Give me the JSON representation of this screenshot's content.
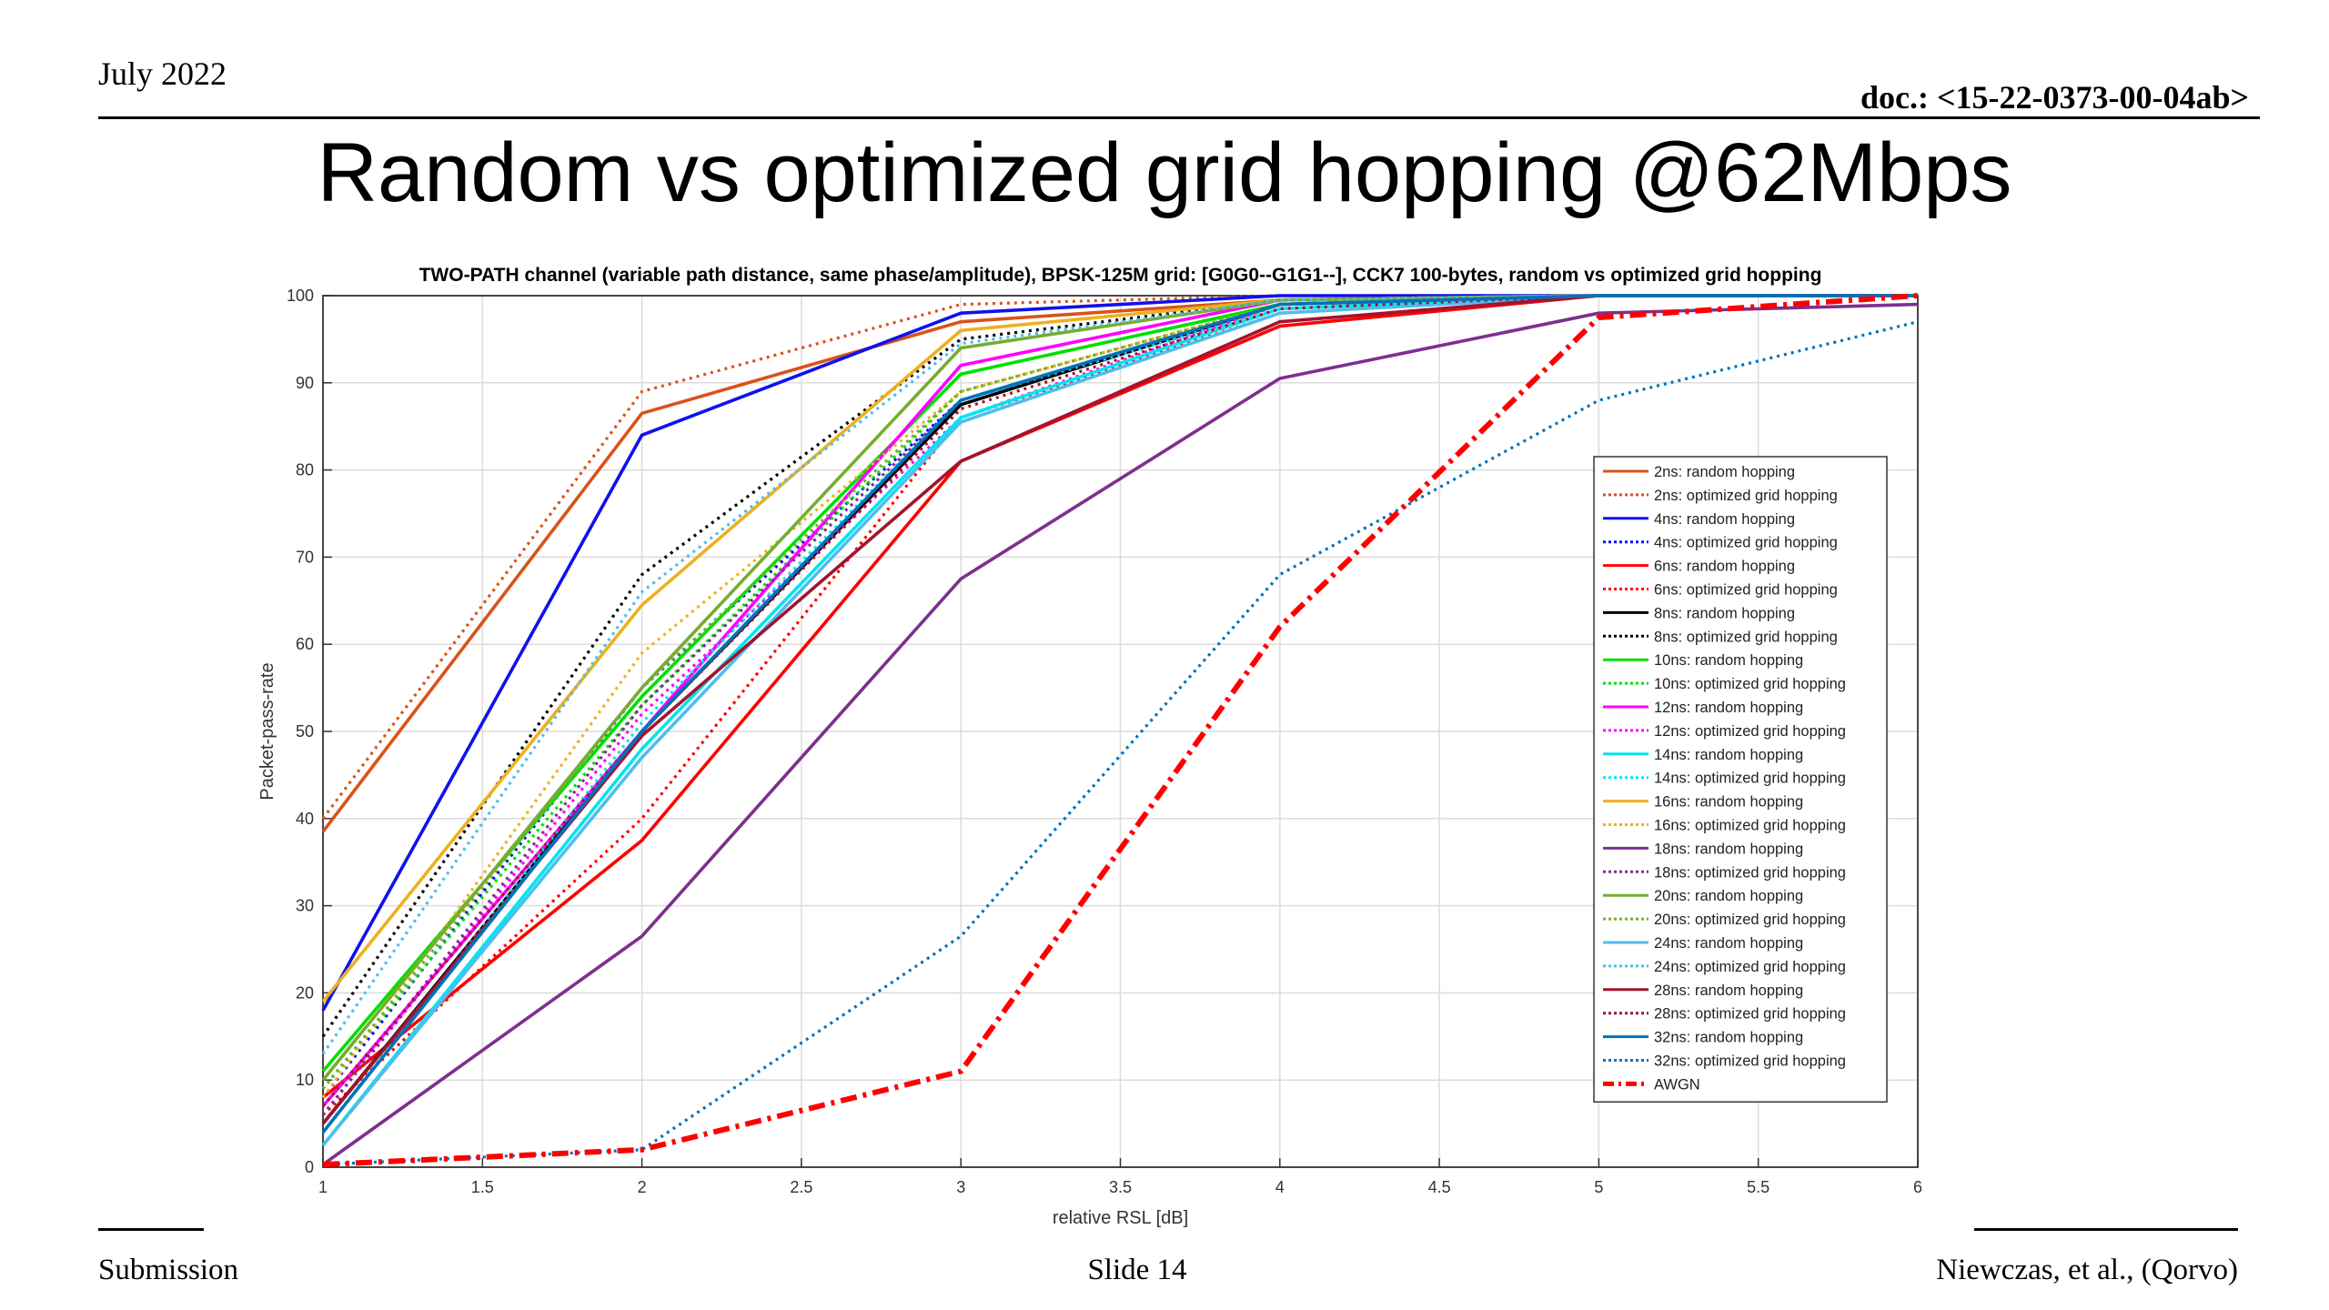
{
  "header": {
    "date": "July 2022",
    "doc": "doc.: <15-22-0373-00-04ab>"
  },
  "slide_title": "Random vs optimized grid hopping @62Mbps",
  "footer": {
    "left": "Submission",
    "center": "Slide 14",
    "right": "Niewczas, et al., (Qorvo)"
  },
  "colors": {
    "c2": "#D95319",
    "c4": "#1010F0",
    "c6": "#FF0000",
    "c8": "#000000",
    "c10": "#00E000",
    "c12": "#FF00FF",
    "c14": "#00E5EE",
    "c16": "#EDB120",
    "c18": "#7E2F8E",
    "c20": "#77AC30",
    "c24": "#4DBEEE",
    "c28": "#A2142F",
    "c32": "#0072BD",
    "awgn": "#FF0000"
  },
  "chart_data": {
    "type": "line",
    "title": "TWO-PATH channel (variable path distance, same phase/amplitude), BPSK-125M grid: [G0G0--G1G1--], CCK7 100-bytes, random vs optimized grid hopping",
    "xlabel": "relative RSL [dB]",
    "ylabel": "Packet-pass-rate",
    "xlim": [
      1,
      6
    ],
    "ylim": [
      0,
      100
    ],
    "xticks": [
      "1",
      "1.5",
      "2",
      "2.5",
      "3",
      "3.5",
      "4",
      "4.5",
      "5",
      "5.5",
      "6"
    ],
    "yticks": [
      "0",
      "10",
      "20",
      "30",
      "40",
      "50",
      "60",
      "70",
      "80",
      "90",
      "100"
    ],
    "grid": true,
    "legend_position": "center-right",
    "x": [
      1,
      2,
      3,
      4,
      5,
      6
    ],
    "series": [
      {
        "name": "2ns: random hopping",
        "color": "#D95319",
        "style": "solid",
        "values": [
          38.5,
          86.5,
          97,
          99.5,
          100,
          100
        ]
      },
      {
        "name": "2ns: optimized grid hopping",
        "color": "#D95319",
        "style": "dotted",
        "values": [
          40,
          89,
          99,
          100,
          100,
          100
        ]
      },
      {
        "name": "4ns: random hopping",
        "color": "#1010F0",
        "style": "solid",
        "values": [
          18,
          84,
          98,
          100,
          100,
          100
        ]
      },
      {
        "name": "4ns: optimized grid hopping",
        "color": "#1010F0",
        "style": "dotted",
        "values": [
          8,
          55,
          88,
          99,
          100,
          100
        ]
      },
      {
        "name": "6ns: random hopping",
        "color": "#FF0000",
        "style": "solid",
        "values": [
          8,
          37.5,
          81,
          96.5,
          100,
          100
        ]
      },
      {
        "name": "6ns: optimized grid hopping",
        "color": "#FF0000",
        "style": "dotted",
        "values": [
          6,
          40,
          86,
          98,
          100,
          100
        ]
      },
      {
        "name": "8ns: random hopping",
        "color": "#000000",
        "style": "solid",
        "values": [
          5,
          50,
          87.5,
          99,
          100,
          100
        ]
      },
      {
        "name": "8ns: optimized grid hopping",
        "color": "#000000",
        "style": "dotted",
        "values": [
          15,
          68,
          95,
          99.5,
          100,
          100
        ]
      },
      {
        "name": "10ns: random hopping",
        "color": "#00E000",
        "style": "solid",
        "values": [
          11,
          54,
          91,
          99,
          100,
          100
        ]
      },
      {
        "name": "10ns: optimized grid hopping",
        "color": "#00E000",
        "style": "dotted",
        "values": [
          9,
          53,
          89,
          99,
          100,
          100
        ]
      },
      {
        "name": "12ns: random hopping",
        "color": "#FF00FF",
        "style": "solid",
        "values": [
          7,
          50,
          92,
          99.5,
          100,
          100
        ]
      },
      {
        "name": "12ns: optimized grid hopping",
        "color": "#FF00FF",
        "style": "dotted",
        "values": [
          6,
          52,
          86,
          99,
          100,
          100
        ]
      },
      {
        "name": "14ns: random hopping",
        "color": "#00E5EE",
        "style": "solid",
        "values": [
          2.5,
          48,
          86,
          98.5,
          100,
          100
        ]
      },
      {
        "name": "14ns: optimized grid hopping",
        "color": "#00E5EE",
        "style": "dotted",
        "values": [
          4,
          51,
          88,
          98.5,
          100,
          100
        ]
      },
      {
        "name": "16ns: random hopping",
        "color": "#EDB120",
        "style": "solid",
        "values": [
          19,
          64.5,
          96,
          99.5,
          100,
          100
        ]
      },
      {
        "name": "16ns: optimized grid hopping",
        "color": "#EDB120",
        "style": "dotted",
        "values": [
          8,
          59,
          89,
          99,
          100,
          100
        ]
      },
      {
        "name": "18ns: random hopping",
        "color": "#7E2F8E",
        "style": "solid",
        "values": [
          0.3,
          26.5,
          67.5,
          90.5,
          98,
          99
        ]
      },
      {
        "name": "18ns: optimized grid hopping",
        "color": "#7E2F8E",
        "style": "dotted",
        "values": [
          6,
          53,
          88,
          99,
          100,
          100
        ]
      },
      {
        "name": "20ns: random hopping",
        "color": "#77AC30",
        "style": "solid",
        "values": [
          10,
          55,
          94,
          99.5,
          100,
          100
        ]
      },
      {
        "name": "20ns: optimized grid hopping",
        "color": "#77AC30",
        "style": "dotted",
        "values": [
          9,
          55,
          89,
          99,
          100,
          100
        ]
      },
      {
        "name": "24ns: random hopping",
        "color": "#4DBEEE",
        "style": "solid",
        "values": [
          2.5,
          47,
          85.5,
          98,
          100,
          100
        ]
      },
      {
        "name": "24ns: optimized grid hopping",
        "color": "#4DBEEE",
        "style": "dotted",
        "values": [
          13,
          66,
          94.5,
          99.5,
          100,
          100
        ]
      },
      {
        "name": "28ns: random hopping",
        "color": "#A2142F",
        "style": "solid",
        "values": [
          5,
          49.5,
          81,
          97,
          100,
          100
        ]
      },
      {
        "name": "28ns: optimized grid hopping",
        "color": "#A2142F",
        "style": "dotted",
        "values": [
          7,
          50,
          87,
          98.5,
          100,
          100
        ]
      },
      {
        "name": "32ns: random hopping",
        "color": "#0072BD",
        "style": "solid",
        "values": [
          4,
          50,
          88,
          99,
          100,
          100
        ]
      },
      {
        "name": "32ns: optimized grid hopping",
        "color": "#0072BD",
        "style": "dotted",
        "values": [
          0.3,
          2,
          26.5,
          68,
          88,
          97
        ]
      },
      {
        "name": "AWGN",
        "color": "#FF0000",
        "style": "dashdot",
        "values": [
          0.3,
          2,
          11,
          62,
          97.5,
          100
        ]
      }
    ]
  }
}
